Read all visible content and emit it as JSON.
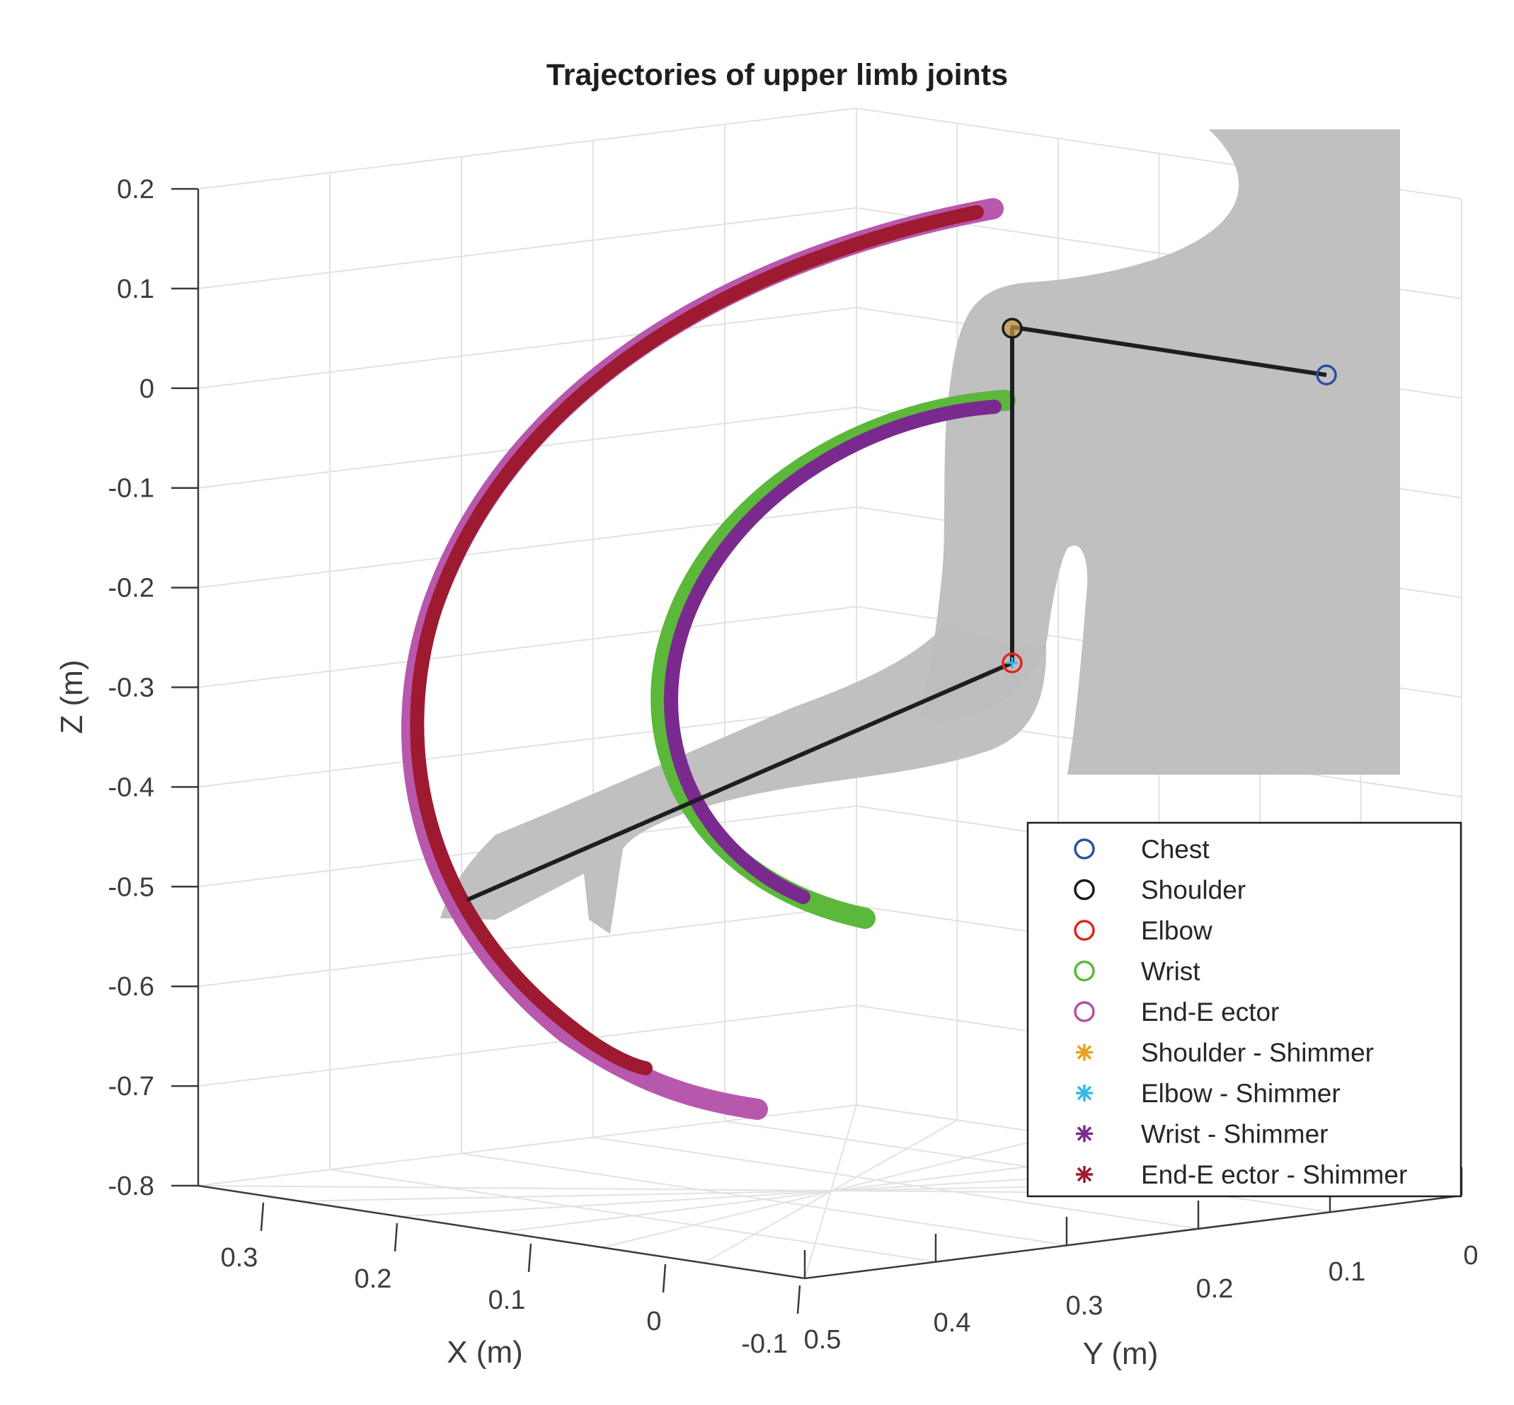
{
  "chart_data": {
    "type": "line",
    "projection": "3d",
    "title": "Trajectories of upper limb joints",
    "xlabel": "X (m)",
    "ylabel": "Y (m)",
    "zlabel": "Z (m)",
    "grid": true,
    "legend_position": "bottom-right",
    "axes": {
      "x_ticks": [
        "0.3",
        "0.2",
        "0.1",
        "0",
        "-0.1"
      ],
      "y_ticks": [
        "0.5",
        "0.4",
        "0.3",
        "0.2",
        "0.1",
        "0"
      ],
      "z_ticks": [
        "0.2",
        "0.1",
        "0",
        "-0.1",
        "-0.2",
        "-0.3",
        "-0.4",
        "-0.5",
        "-0.6",
        "-0.7",
        "-0.8"
      ],
      "zlim": [
        -0.8,
        0.2
      ]
    },
    "colors": {
      "Chest": "#2e4fa3",
      "Shoulder": "#1a1a1a",
      "Elbow": "#e0261b",
      "Wrist": "#5cb83a",
      "End-Effector": "#b44fa8",
      "Shoulder - Shimmer": "#e8a21a",
      "Elbow - Shimmer": "#35b8e8",
      "Wrist - Shimmer": "#7a2a8e",
      "End-Effector - Shimmer": "#9e1a30",
      "body": "#bebebe",
      "skeleton": "#1e1e1e"
    },
    "legend": [
      {
        "label": "Chest",
        "marker": "o"
      },
      {
        "label": "Shoulder",
        "marker": "o"
      },
      {
        "label": "Elbow",
        "marker": "o"
      },
      {
        "label": "Wrist",
        "marker": "o"
      },
      {
        "label": "End-E ector",
        "marker": "o"
      },
      {
        "label": "Shoulder - Shimmer",
        "marker": "*"
      },
      {
        "label": "Elbow - Shimmer",
        "marker": "*"
      },
      {
        "label": "Wrist - Shimmer",
        "marker": "*"
      },
      {
        "label": "End-E ector - Shimmer",
        "marker": "*"
      }
    ],
    "joints": {
      "Chest": [
        0.1,
        0.0,
        0.01
      ],
      "Shoulder": [
        0.0,
        0.3,
        0.06
      ],
      "Elbow": [
        0.0,
        0.3,
        -0.27
      ]
    },
    "series": [
      {
        "name": "End-E ector",
        "description_points_z": [
          0.18,
          -0.73
        ]
      },
      {
        "name": "End-E ector - Shimmer",
        "description_points_z": [
          0.17,
          -0.69
        ]
      },
      {
        "name": "Wrist",
        "description_points_z": [
          -0.01,
          -0.54
        ]
      },
      {
        "name": "Wrist - Shimmer",
        "description_points_z": [
          -0.02,
          -0.51
        ]
      }
    ]
  }
}
